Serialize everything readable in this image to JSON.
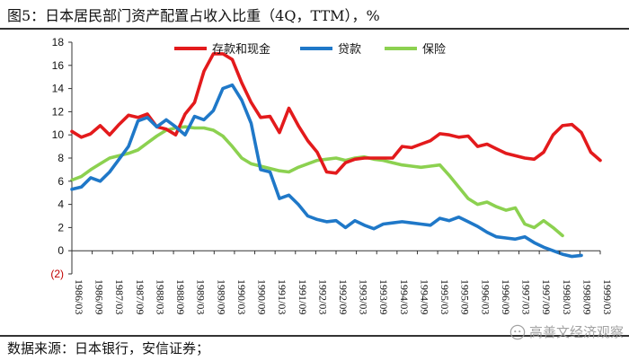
{
  "figure": {
    "title": "图5：日本居民部门资产配置占收入比重（4Q，TTM），%",
    "source": "数据来源：日本银行，安信证券；",
    "watermark": "高善文经济观察"
  },
  "colors": {
    "deposits": "#e31a1c",
    "loans": "#1f78c8",
    "insurance": "#8cd150"
  },
  "chart_data": {
    "type": "line",
    "title": "图5：日本居民部门资产配置占收入比重（4Q，TTM），%",
    "xlabel": "",
    "ylabel": "",
    "ylim": [
      -2,
      18
    ],
    "yticks": [
      {
        "value": 18,
        "label": "18"
      },
      {
        "value": 16,
        "label": "16"
      },
      {
        "value": 14,
        "label": "14"
      },
      {
        "value": 12,
        "label": "12"
      },
      {
        "value": 10,
        "label": "10"
      },
      {
        "value": 8,
        "label": "8"
      },
      {
        "value": 6,
        "label": "6"
      },
      {
        "value": 4,
        "label": "4"
      },
      {
        "value": 2,
        "label": "2"
      },
      {
        "value": 0,
        "label": "0"
      },
      {
        "value": -2,
        "label": "(2)"
      }
    ],
    "x_tick_labels": [
      "1986/03",
      "1986/09",
      "1987/03",
      "1987/09",
      "1988/03",
      "1988/09",
      "1989/03",
      "1989/09",
      "1990/03",
      "1990/09",
      "1991/03",
      "1991/09",
      "1992/03",
      "1992/09",
      "1993/03",
      "1993/09",
      "1994/03",
      "1994/09",
      "1995/03",
      "1995/09",
      "1996/03",
      "1996/09",
      "1997/03",
      "1997/09",
      "1998/03",
      "1998/09",
      "1999/03"
    ],
    "legend": [
      "存款和现金",
      "贷款",
      "保险"
    ],
    "series": [
      {
        "name": "存款和现金",
        "color": "#e31a1c",
        "values": [
          10.3,
          9.8,
          10.1,
          10.8,
          10.0,
          10.9,
          11.7,
          11.5,
          11.8,
          10.7,
          10.5,
          10.0,
          11.8,
          12.8,
          15.5,
          17.0,
          17.0,
          16.5,
          14.5,
          12.8,
          11.5,
          11.6,
          10.2,
          12.3,
          10.8,
          9.5,
          8.5,
          6.8,
          6.7,
          7.6,
          7.9,
          8.0,
          8.0,
          8.0,
          8.0,
          9.0,
          8.9,
          9.2,
          9.5,
          10.1,
          10.0,
          9.8,
          9.9,
          9.0,
          9.2,
          8.8,
          8.4,
          8.2,
          8.0,
          7.9,
          8.5,
          10.0,
          10.8,
          10.9,
          10.2,
          8.5,
          7.8
        ]
      },
      {
        "name": "贷款",
        "color": "#1f78c8",
        "values": [
          5.3,
          5.5,
          6.3,
          6.0,
          6.8,
          7.9,
          9.0,
          11.2,
          11.5,
          10.7,
          11.3,
          10.7,
          10.0,
          11.6,
          11.3,
          12.1,
          14.0,
          14.3,
          13.0,
          11.0,
          7.0,
          6.8,
          4.5,
          4.8,
          4.0,
          3.0,
          2.7,
          2.5,
          2.6,
          2.0,
          2.6,
          2.2,
          1.9,
          2.3,
          2.4,
          2.5,
          2.4,
          2.3,
          2.2,
          2.8,
          2.6,
          2.9,
          2.5,
          2.1,
          1.6,
          1.2,
          1.1,
          1.0,
          1.2,
          0.7,
          0.3,
          0.0,
          -0.3,
          -0.5,
          -0.4
        ]
      },
      {
        "name": "保险",
        "color": "#8cd150",
        "values": [
          6.1,
          6.4,
          7.0,
          7.5,
          8.0,
          8.2,
          8.4,
          8.7,
          9.3,
          9.9,
          10.4,
          10.6,
          10.7,
          10.6,
          10.6,
          10.4,
          9.9,
          9.0,
          8.0,
          7.5,
          7.3,
          7.1,
          6.9,
          6.8,
          7.2,
          7.5,
          7.8,
          7.9,
          8.0,
          7.8,
          8.0,
          8.1,
          7.9,
          7.8,
          7.6,
          7.4,
          7.3,
          7.2,
          7.3,
          7.4,
          6.5,
          5.5,
          4.5,
          4.0,
          4.2,
          3.8,
          3.5,
          3.7,
          2.3,
          2.0,
          2.6,
          2.0,
          1.3
        ]
      }
    ]
  }
}
